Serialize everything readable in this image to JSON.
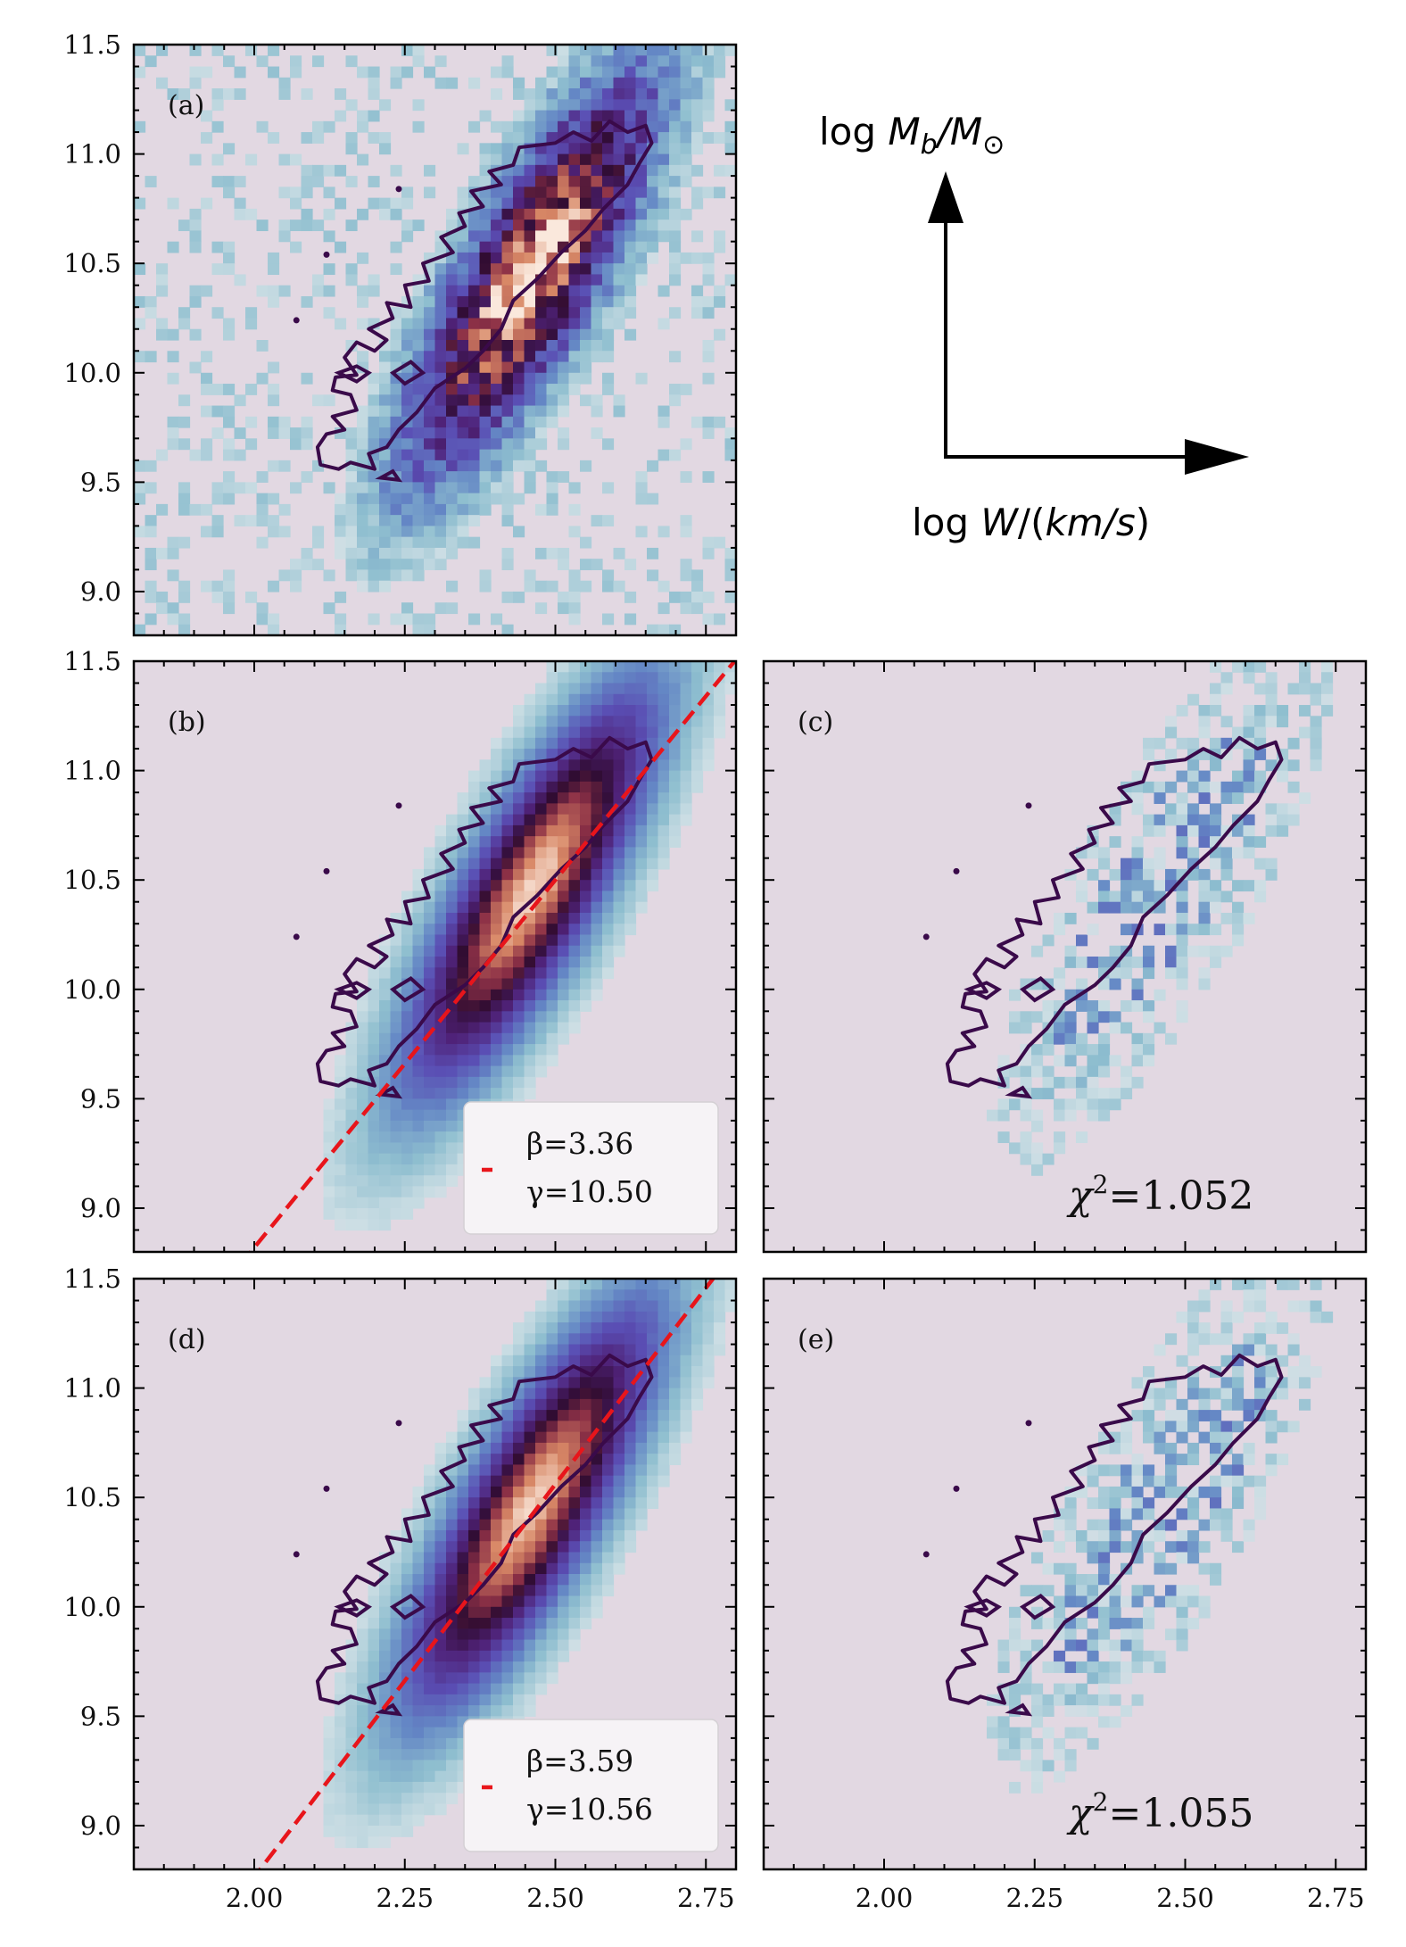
{
  "colors": {
    "background_pixel": "#e2d8e2",
    "contour": "#3a0a4a",
    "fit_line": "#e8151b",
    "frame": "#000000",
    "legend_bg": "#f6f3f6"
  },
  "chart_data": [
    {
      "panel": "a",
      "label": "(a)",
      "type": "heatmap",
      "description_kind": "observed",
      "xlim": [
        1.8,
        2.8
      ],
      "ylim": [
        8.8,
        11.5
      ],
      "xticks": [
        "2.00",
        "2.25",
        "2.50",
        "2.75"
      ],
      "yticks": [
        "9.0",
        "9.5",
        "10.0",
        "10.5",
        "11.0",
        "11.5"
      ],
      "show_x_ticklabels": false,
      "show_y_ticklabels": true,
      "peak_density": 1.0
    },
    {
      "panel": "b",
      "label": "(b)",
      "type": "heatmap",
      "description_kind": "model",
      "xlim": [
        1.8,
        2.8
      ],
      "ylim": [
        8.8,
        11.5
      ],
      "xticks": [
        "2.00",
        "2.25",
        "2.50",
        "2.75"
      ],
      "yticks": [
        "9.0",
        "9.5",
        "10.0",
        "10.5",
        "11.0",
        "11.5"
      ],
      "show_x_ticklabels": false,
      "show_y_ticklabels": true,
      "fit_line": {
        "slope": 3.36,
        "intercept": 10.5,
        "pivot_x": 2.5
      },
      "legend": {
        "beta": "β=3.36",
        "gamma": "γ=10.50"
      }
    },
    {
      "panel": "c",
      "label": "(c)",
      "type": "heatmap",
      "description_kind": "residual",
      "xlim": [
        1.8,
        2.8
      ],
      "ylim": [
        8.8,
        11.5
      ],
      "show_x_ticklabels": false,
      "show_y_ticklabels": false,
      "chi2_prefix": "χ",
      "chi2_sup": "2",
      "chi2_value": "=1.052"
    },
    {
      "panel": "d",
      "label": "(d)",
      "type": "heatmap",
      "description_kind": "model",
      "xlim": [
        1.8,
        2.8
      ],
      "ylim": [
        8.8,
        11.5
      ],
      "xticks": [
        "2.00",
        "2.25",
        "2.50",
        "2.75"
      ],
      "yticks": [
        "9.0",
        "9.5",
        "10.0",
        "10.5",
        "11.0",
        "11.5"
      ],
      "show_x_ticklabels": true,
      "show_y_ticklabels": true,
      "fit_line": {
        "slope": 3.59,
        "intercept": 10.56,
        "pivot_x": 2.5
      },
      "legend": {
        "beta": "β=3.59",
        "gamma": "γ=10.56"
      }
    },
    {
      "panel": "e",
      "label": "(e)",
      "type": "heatmap",
      "description_kind": "residual",
      "xlim": [
        1.8,
        2.8
      ],
      "ylim": [
        8.8,
        11.5
      ],
      "xticks": [
        "2.00",
        "2.25",
        "2.50",
        "2.75"
      ],
      "show_x_ticklabels": true,
      "show_y_ticklabels": false,
      "chi2_prefix": "χ",
      "chi2_sup": "2",
      "chi2_value": "=1.055"
    }
  ],
  "axis_key": {
    "y_label": "log M_b/M_⊙",
    "x_label": "log W/(km/s)"
  }
}
